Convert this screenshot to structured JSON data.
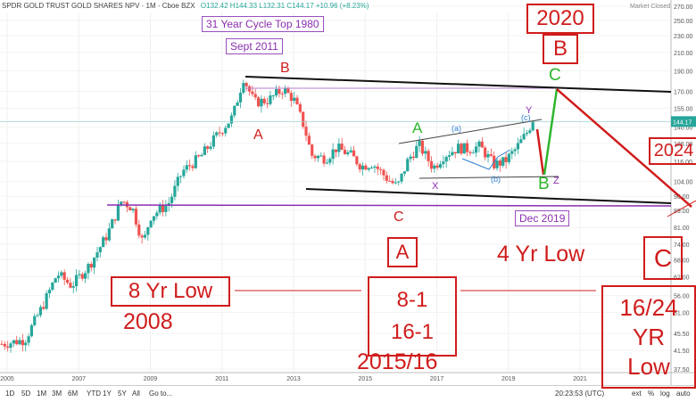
{
  "header": {
    "symbol": "SPDR GOLD TRUST GOLD SHARES NPV · 1M · Cboe BZX",
    "ohlc": "O132.42  H144.33  L132.31  C144.17  +10.96 (+8.23%)",
    "market_status": "Market Closed"
  },
  "toolbar": {
    "ranges": [
      "1D",
      "5D",
      "1M",
      "3M",
      "6M",
      "YTD",
      "1Y",
      "5Y",
      "All"
    ],
    "goto": "Go to...",
    "time": "20:23:53 (UTC)",
    "ext": "ext",
    "pct": "%",
    "log": "log",
    "auto": "auto"
  },
  "colors": {
    "up": "#26a69a",
    "down": "#ef5350",
    "annotation": "#d01c1c",
    "purple": "#8a2fb0",
    "green": "#2db52d"
  },
  "chart_data": {
    "type": "candlestick",
    "title": "SPDR GOLD TRUST GOLD SHARES NPV",
    "interval": "1M",
    "x_ticks": [
      "2005",
      "2007",
      "2009",
      "2011",
      "2013",
      "2015",
      "2017",
      "2019",
      "2021"
    ],
    "y_ticks": [
      270,
      250,
      230,
      210,
      190,
      170,
      155,
      140,
      128,
      116,
      104,
      96,
      89,
      81,
      74,
      68,
      62,
      56,
      51,
      45.5,
      41.5,
      37.5
    ],
    "y_scale": "log",
    "last_price": 144.17,
    "closes": [
      [
        2004.9,
        43
      ],
      [
        2005.5,
        44
      ],
      [
        2006.0,
        53
      ],
      [
        2006.4,
        63
      ],
      [
        2006.8,
        59
      ],
      [
        2007.3,
        66
      ],
      [
        2007.8,
        78
      ],
      [
        2008.2,
        94
      ],
      [
        2008.5,
        90
      ],
      [
        2008.8,
        74
      ],
      [
        2009.0,
        86
      ],
      [
        2009.5,
        92
      ],
      [
        2009.9,
        110
      ],
      [
        2010.4,
        119
      ],
      [
        2010.9,
        135
      ],
      [
        2011.3,
        148
      ],
      [
        2011.6,
        183
      ],
      [
        2011.9,
        160
      ],
      [
        2012.3,
        162
      ],
      [
        2012.7,
        172
      ],
      [
        2013.0,
        163
      ],
      [
        2013.3,
        140
      ],
      [
        2013.5,
        120
      ],
      [
        2013.9,
        118
      ],
      [
        2014.2,
        125
      ],
      [
        2014.6,
        120
      ],
      [
        2014.9,
        113
      ],
      [
        2015.2,
        115
      ],
      [
        2015.6,
        106
      ],
      [
        2015.9,
        101
      ],
      [
        2016.2,
        117
      ],
      [
        2016.5,
        127
      ],
      [
        2016.9,
        112
      ],
      [
        2017.2,
        120
      ],
      [
        2017.6,
        125
      ],
      [
        2017.9,
        124
      ],
      [
        2018.2,
        126
      ],
      [
        2018.6,
        114
      ],
      [
        2018.9,
        116
      ],
      [
        2019.2,
        124
      ],
      [
        2019.5,
        135
      ],
      [
        2019.67,
        144.17
      ]
    ]
  },
  "annotations": {
    "cycle_top": "31 Year Cycle Top 1980",
    "sept": "Sept 2011",
    "dec2019": "Dec 2019",
    "box2020": "2020",
    "boxB": "B",
    "box2024": "2024",
    "boxA": "A",
    "boxC": "C",
    "low8": "8 Yr Low",
    "y2008": "2008",
    "b81": "8-1",
    "b161": "16-1",
    "y2015": "2015/16",
    "low4": "4 Yr Low",
    "b1624": "16/24",
    "yr": "YR",
    "low": "Low",
    "lblB": "B",
    "lblA": "A",
    "lblC": "C",
    "gA": "A",
    "gB": "B",
    "gC": "C",
    "wX": "X",
    "wY": "Y",
    "wZ": "Z",
    "wa": "(a)",
    "wb": "(b)",
    "wc": "(c)"
  }
}
